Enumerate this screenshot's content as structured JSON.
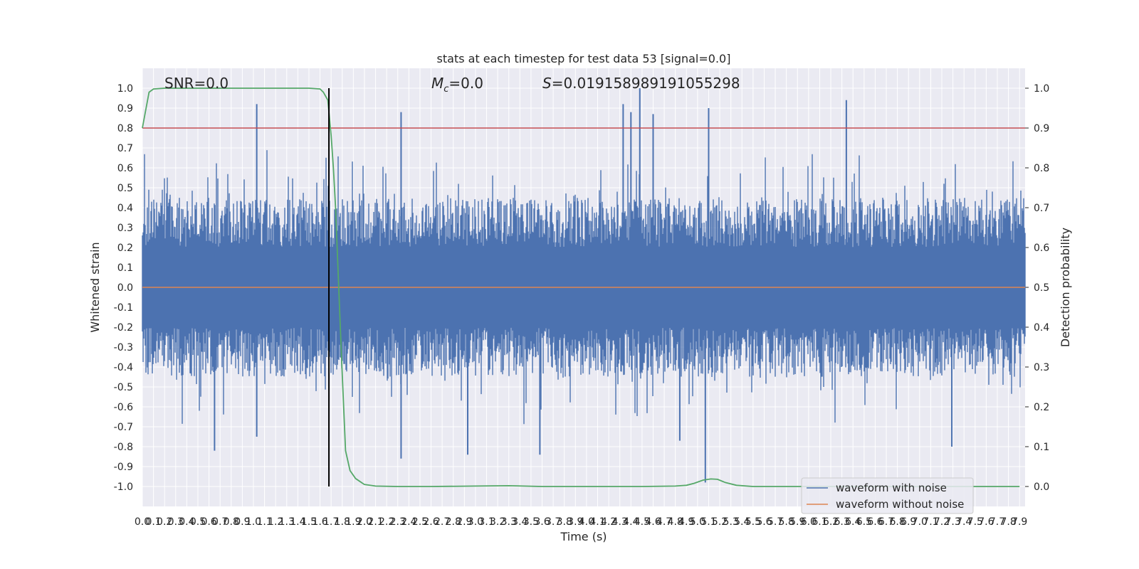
{
  "chart_data": {
    "type": "line",
    "title": "stats at each timestep for test data 53 [signal=0.0]",
    "xlabel": "Time (s)",
    "ylabel": "Whitened strain",
    "y2label": "Detection probability",
    "xlim": [
      0.0,
      7.95
    ],
    "ylim": [
      -1.1,
      1.1
    ],
    "y2lim": [
      -0.05,
      1.05
    ],
    "x_ticks": [
      "0.0",
      "0.1",
      "0.2",
      "0.3",
      "0.4",
      "0.5",
      "0.6",
      "0.7",
      "0.8",
      "0.9",
      "1.0",
      "1.1",
      "1.2",
      "1.3",
      "1.4",
      "1.5",
      "1.6",
      "1.7",
      "1.8",
      "1.9",
      "2.0",
      "2.1",
      "2.2",
      "2.3",
      "2.4",
      "2.5",
      "2.6",
      "2.7",
      "2.8",
      "2.9",
      "3.0",
      "3.1",
      "3.2",
      "3.3",
      "3.4",
      "3.5",
      "3.6",
      "3.7",
      "3.8",
      "3.9",
      "4.0",
      "4.1",
      "4.2",
      "4.3",
      "4.4",
      "4.5",
      "4.6",
      "4.7",
      "4.8",
      "4.9",
      "5.0",
      "5.1",
      "5.2",
      "5.3",
      "5.4",
      "5.5",
      "5.6",
      "5.7",
      "5.8",
      "5.9",
      "6.0",
      "6.1",
      "6.2",
      "6.3",
      "6.4",
      "6.5",
      "6.6",
      "6.7",
      "6.8",
      "6.9",
      "7.0",
      "7.1",
      "7.2",
      "7.3",
      "7.4",
      "7.5",
      "7.6",
      "7.7",
      "7.8",
      "7.9"
    ],
    "y_ticks": [
      "1.0",
      "0.9",
      "0.8",
      "0.7",
      "0.6",
      "0.5",
      "0.4",
      "0.3",
      "0.2",
      "0.1",
      "0.0",
      "-0.1",
      "-0.2",
      "-0.3",
      "-0.4",
      "-0.5",
      "-0.6",
      "-0.7",
      "-0.8",
      "-0.9",
      "-1.0"
    ],
    "y2_ticks": [
      "1.0",
      "0.9",
      "0.8",
      "0.7",
      "0.6",
      "0.5",
      "0.4",
      "0.3",
      "0.2",
      "0.1",
      "0.0"
    ],
    "annotations": {
      "snr": "SNR=0.0",
      "mc_symbol": "M",
      "mc_sub": "c",
      "mc_value": "=0.0",
      "s_symbol": "S",
      "s_value": "=0.019158989191055298"
    },
    "threshold": {
      "value": 0.9,
      "axis": "y2",
      "color": "#c44e52"
    },
    "vline": {
      "x": 1.68,
      "color": "#000000"
    },
    "series": [
      {
        "name": "waveform with noise",
        "color": "#4c72b0",
        "axis": "y",
        "kind": "noise",
        "envelope_typical": 0.45,
        "envelope_max": 1.0,
        "peaks": [
          [
            1.03,
            0.92
          ],
          [
            1.03,
            -0.75
          ],
          [
            0.65,
            -0.82
          ],
          [
            2.33,
            0.88
          ],
          [
            2.33,
            -0.86
          ],
          [
            4.33,
            0.92
          ],
          [
            4.4,
            0.88
          ],
          [
            4.48,
            1.0
          ],
          [
            4.6,
            0.87
          ],
          [
            5.1,
            0.9
          ],
          [
            5.07,
            -0.98
          ],
          [
            6.34,
            0.94
          ],
          [
            7.29,
            -0.8
          ],
          [
            4.84,
            -0.77
          ],
          [
            2.93,
            -0.84
          ],
          [
            3.58,
            -0.84
          ]
        ]
      },
      {
        "name": "waveform without noise",
        "color": "#dd8452",
        "axis": "y",
        "x": [
          0.0,
          7.95
        ],
        "y": [
          0.0,
          0.0
        ]
      },
      {
        "name": "detection probability",
        "color": "#55a868",
        "axis": "y2",
        "x": [
          0.0,
          0.06,
          0.1,
          0.2,
          0.5,
          1.0,
          1.5,
          1.6,
          1.63,
          1.67,
          1.7,
          1.72,
          1.74,
          1.76,
          1.78,
          1.8,
          1.83,
          1.87,
          1.92,
          2.0,
          2.1,
          2.3,
          2.6,
          3.0,
          3.3,
          3.6,
          4.0,
          4.5,
          4.8,
          4.9,
          4.97,
          5.05,
          5.12,
          5.18,
          5.25,
          5.35,
          5.5,
          6.0,
          6.5,
          7.0,
          7.5,
          7.9
        ],
        "y": [
          0.9,
          0.99,
          0.998,
          1.0,
          1.0,
          1.0,
          1.0,
          0.998,
          0.99,
          0.97,
          0.88,
          0.8,
          0.7,
          0.56,
          0.42,
          0.28,
          0.09,
          0.04,
          0.02,
          0.005,
          0.001,
          0.0,
          0.0,
          0.001,
          0.002,
          0.0,
          0.0,
          0.0,
          0.001,
          0.003,
          0.008,
          0.016,
          0.019,
          0.018,
          0.01,
          0.003,
          0.0,
          0.0,
          0.0,
          0.0,
          0.0,
          0.0
        ]
      }
    ],
    "legend": {
      "placement": "lower-right",
      "entries": [
        "waveform with noise",
        "waveform without noise"
      ]
    },
    "grid": true
  }
}
